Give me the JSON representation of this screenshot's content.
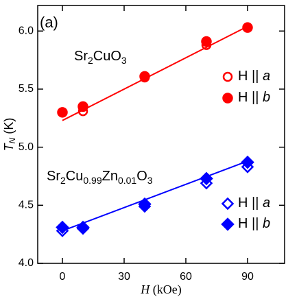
{
  "chart_data": {
    "type": "scatter",
    "panel_label": "(a)",
    "xlabel": "H (kOe)",
    "ylabel": "TN (K)",
    "xlim": [
      -12,
      108
    ],
    "ylim": [
      4.0,
      6.22
    ],
    "xticks": [
      0,
      30,
      60,
      90
    ],
    "yticks": [
      {
        "value": 4.0,
        "label": "4.0"
      },
      4.5,
      {
        "value": 5.0,
        "label": "5.0"
      },
      5.5,
      {
        "value": 6.0,
        "label": "6.0"
      }
    ],
    "annotations": [
      "Sr2CuO3",
      "Sr2Cu0.99Zn0.01O3"
    ],
    "series": [
      {
        "name": "H || a",
        "color": "#ff0000",
        "marker": "circle",
        "filled": false,
        "x": [
          0,
          10,
          40,
          70,
          90
        ],
        "values": [
          5.3,
          5.31,
          5.6,
          5.88,
          6.03
        ]
      },
      {
        "name": "H || b",
        "color": "#ff0000",
        "marker": "circle",
        "filled": true,
        "x": [
          0,
          10,
          40,
          70,
          90
        ],
        "values": [
          5.3,
          5.35,
          5.61,
          5.91,
          6.03
        ]
      },
      {
        "name": "H || a",
        "color": "#0000ff",
        "marker": "diamond",
        "filled": false,
        "x": [
          0,
          10,
          40,
          70,
          90
        ],
        "values": [
          4.28,
          4.3,
          4.49,
          4.69,
          4.83
        ]
      },
      {
        "name": "H || b",
        "color": "#0000ff",
        "marker": "diamond",
        "filled": true,
        "x": [
          0,
          10,
          40,
          70,
          90
        ],
        "values": [
          4.31,
          4.31,
          4.51,
          4.73,
          4.87
        ]
      }
    ],
    "fits": [
      {
        "color": "#ff0000",
        "x": [
          0,
          90
        ],
        "values": [
          5.23,
          6.04
        ]
      },
      {
        "color": "#0000ff",
        "x": [
          0,
          90
        ],
        "values": [
          4.28,
          4.88
        ]
      }
    ]
  }
}
